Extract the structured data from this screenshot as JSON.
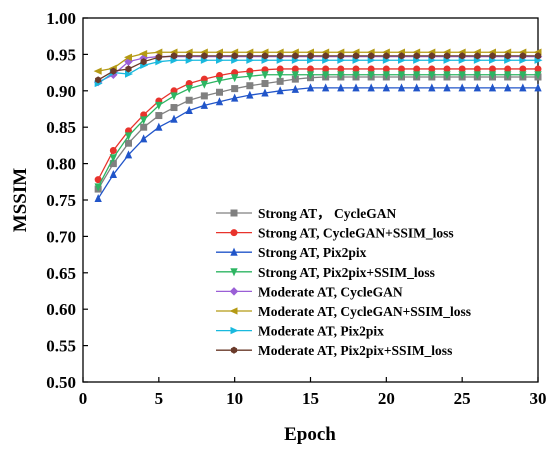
{
  "chart_data": {
    "type": "line",
    "title": "",
    "xlabel": "Epoch",
    "ylabel": "MSSIM",
    "xlim": [
      0,
      30
    ],
    "ylim": [
      0.5,
      1.0
    ],
    "xticks": [
      0,
      5,
      10,
      15,
      20,
      25,
      30
    ],
    "yticks": [
      0.5,
      0.55,
      0.6,
      0.65,
      0.7,
      0.75,
      0.8,
      0.85,
      0.9,
      0.95,
      1.0
    ],
    "xtick_labels": [
      "0",
      "5",
      "10",
      "15",
      "20",
      "25",
      "30"
    ],
    "ytick_labels": [
      "0.50",
      "0.55",
      "0.60",
      "0.65",
      "0.70",
      "0.75",
      "0.80",
      "0.85",
      "0.90",
      "0.95",
      "1.00"
    ],
    "grid": false,
    "legend_position": "bottom-right",
    "x": [
      1,
      2,
      3,
      4,
      5,
      6,
      7,
      8,
      9,
      10,
      11,
      12,
      13,
      14,
      15,
      16,
      17,
      18,
      19,
      20,
      21,
      22,
      23,
      24,
      25,
      26,
      27,
      28,
      29,
      30
    ],
    "series": [
      {
        "name": "Strong AT， CycleGAN",
        "color": "#808080",
        "marker": "square",
        "values": [
          0.765,
          0.8,
          0.828,
          0.85,
          0.866,
          0.877,
          0.887,
          0.893,
          0.898,
          0.903,
          0.907,
          0.91,
          0.913,
          0.916,
          0.918,
          0.919,
          0.919,
          0.919,
          0.919,
          0.919,
          0.919,
          0.919,
          0.919,
          0.919,
          0.919,
          0.919,
          0.919,
          0.919,
          0.919,
          0.919
        ]
      },
      {
        "name": "Strong AT, CycleGAN+SSIM_loss",
        "color": "#e8332c",
        "marker": "circle",
        "values": [
          0.778,
          0.818,
          0.845,
          0.867,
          0.886,
          0.9,
          0.91,
          0.916,
          0.921,
          0.925,
          0.927,
          0.929,
          0.93,
          0.93,
          0.93,
          0.93,
          0.93,
          0.93,
          0.93,
          0.93,
          0.93,
          0.93,
          0.93,
          0.93,
          0.93,
          0.93,
          0.93,
          0.93,
          0.93,
          0.93
        ]
      },
      {
        "name": "Strong AT, Pix2pix",
        "color": "#2155c9",
        "marker": "triangle-up",
        "values": [
          0.752,
          0.785,
          0.812,
          0.834,
          0.85,
          0.861,
          0.873,
          0.88,
          0.885,
          0.89,
          0.894,
          0.897,
          0.9,
          0.902,
          0.904,
          0.904,
          0.904,
          0.904,
          0.904,
          0.904,
          0.904,
          0.904,
          0.904,
          0.904,
          0.904,
          0.904,
          0.904,
          0.904,
          0.904,
          0.904
        ]
      },
      {
        "name": "Strong AT, Pix2pix+SSIM_loss",
        "color": "#2db562",
        "marker": "triangle-down",
        "values": [
          0.768,
          0.808,
          0.838,
          0.86,
          0.88,
          0.893,
          0.903,
          0.909,
          0.914,
          0.918,
          0.92,
          0.922,
          0.922,
          0.922,
          0.922,
          0.922,
          0.922,
          0.922,
          0.922,
          0.922,
          0.922,
          0.922,
          0.922,
          0.922,
          0.922,
          0.922,
          0.922,
          0.922,
          0.922,
          0.922
        ]
      },
      {
        "name": "Moderate AT, CycleGAN",
        "color": "#9a5fd6",
        "marker": "diamond",
        "values": [
          0.912,
          0.922,
          0.94,
          0.945,
          0.947,
          0.947,
          0.947,
          0.947,
          0.947,
          0.947,
          0.947,
          0.947,
          0.947,
          0.947,
          0.947,
          0.947,
          0.947,
          0.947,
          0.947,
          0.947,
          0.947,
          0.947,
          0.947,
          0.947,
          0.947,
          0.947,
          0.947,
          0.947,
          0.947,
          0.947
        ]
      },
      {
        "name": "Moderate AT, CycleGAN+SSIM_loss",
        "color": "#b59a14",
        "marker": "triangle-left",
        "values": [
          0.927,
          0.931,
          0.946,
          0.951,
          0.953,
          0.953,
          0.953,
          0.953,
          0.953,
          0.953,
          0.953,
          0.953,
          0.953,
          0.953,
          0.953,
          0.953,
          0.953,
          0.953,
          0.953,
          0.953,
          0.953,
          0.953,
          0.953,
          0.953,
          0.953,
          0.953,
          0.953,
          0.953,
          0.953,
          0.953
        ]
      },
      {
        "name": "Moderate AT, Pix2pix",
        "color": "#19b9de",
        "marker": "triangle-right",
        "values": [
          0.91,
          0.925,
          0.923,
          0.935,
          0.94,
          0.942,
          0.942,
          0.942,
          0.942,
          0.942,
          0.942,
          0.942,
          0.942,
          0.942,
          0.942,
          0.942,
          0.942,
          0.942,
          0.942,
          0.942,
          0.942,
          0.942,
          0.942,
          0.942,
          0.942,
          0.942,
          0.942,
          0.942,
          0.942,
          0.942
        ]
      },
      {
        "name": "Moderate AT, Pix2pix+SSIM_loss",
        "color": "#6a3a2a",
        "marker": "hexagon",
        "values": [
          0.915,
          0.927,
          0.93,
          0.94,
          0.946,
          0.948,
          0.948,
          0.948,
          0.948,
          0.948,
          0.948,
          0.948,
          0.948,
          0.948,
          0.948,
          0.948,
          0.948,
          0.948,
          0.948,
          0.948,
          0.948,
          0.948,
          0.948,
          0.948,
          0.948,
          0.948,
          0.948,
          0.948,
          0.948,
          0.948
        ]
      }
    ]
  }
}
